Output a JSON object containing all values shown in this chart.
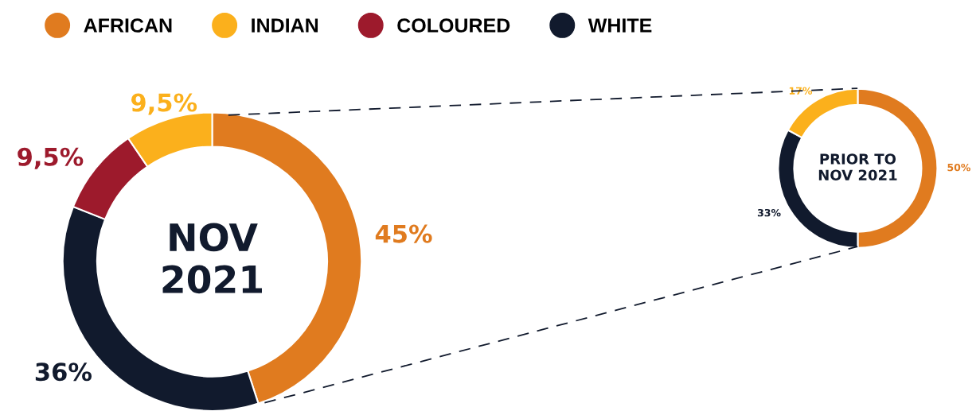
{
  "chart_data": [
    {
      "type": "donut",
      "title": "NOV\n2021",
      "categories": [
        "AFRICAN",
        "WHITE",
        "COLOURED",
        "INDIAN"
      ],
      "values": [
        45,
        36,
        9.5,
        9.5
      ],
      "colors": [
        "#e07b1f",
        "#111a2d",
        "#9d1a2c",
        "#fbb01c"
      ],
      "value_labels": [
        "45%",
        "36%",
        "9,5%",
        "9,5%"
      ],
      "legend": "top"
    },
    {
      "type": "donut",
      "title": "PRIOR TO\nNOV 2021",
      "categories": [
        null,
        null,
        null
      ],
      "values": [
        50,
        33,
        17
      ],
      "colors": [
        "#e07b1f",
        "#111a2d",
        "#fbb01c"
      ],
      "value_labels": [
        "50%",
        "33%",
        "17%"
      ]
    }
  ]
}
